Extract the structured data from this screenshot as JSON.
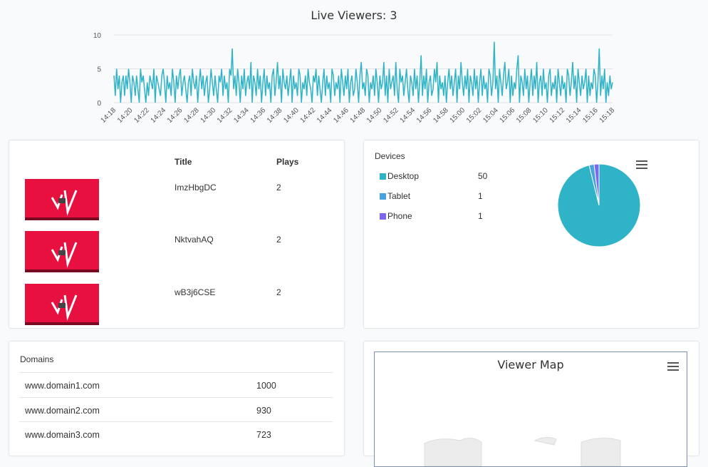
{
  "live_chart": {
    "title": "Live Viewers: 3",
    "y_ticks": [
      "10",
      "5",
      "0"
    ],
    "x_ticks": [
      "14:18",
      "14:20",
      "14:22",
      "14:24",
      "14:26",
      "14:28",
      "14:30",
      "14:32",
      "14:34",
      "14:36",
      "14:38",
      "14:40",
      "14:42",
      "14:44",
      "14:46",
      "14:48",
      "14:50",
      "14:52",
      "14:54",
      "14:56",
      "14:58",
      "15:00",
      "15:02",
      "15:04",
      "15:06",
      "15:08",
      "15:10",
      "15:12",
      "15:14",
      "15:16",
      "15:18"
    ],
    "line_color": "#2fb3c6"
  },
  "chart_data": [
    {
      "type": "line",
      "title": "Live Viewers: 3",
      "xlabel": "",
      "ylabel": "",
      "ylim": [
        0,
        10
      ],
      "x_range": [
        "14:18",
        "15:18"
      ],
      "grid": true,
      "series": [
        {
          "values": [
            4,
            1,
            5,
            2,
            4,
            0,
            3,
            4,
            1,
            4,
            2,
            5,
            3,
            0,
            4,
            3,
            1,
            4,
            2,
            0,
            5,
            3,
            4,
            2,
            0,
            3,
            1,
            4,
            3,
            2,
            5,
            0,
            4,
            3,
            2,
            1,
            4,
            5,
            3,
            0,
            4,
            2,
            3,
            1,
            5,
            3,
            0,
            4,
            2,
            4,
            5,
            1,
            3,
            4,
            2,
            0,
            3,
            4,
            1,
            5,
            3,
            2,
            4,
            0,
            3,
            5,
            2,
            4,
            1,
            3,
            4,
            0,
            2,
            5,
            3,
            1,
            4,
            2,
            0,
            4,
            3,
            5,
            1,
            4,
            2,
            3,
            0,
            5,
            4,
            8,
            2,
            4,
            1,
            5,
            3,
            0,
            4,
            2,
            5,
            1,
            3,
            4,
            2,
            6,
            0,
            4,
            3,
            1,
            5,
            2,
            4,
            0,
            3,
            5,
            1,
            4,
            2,
            3,
            0,
            4,
            5,
            1,
            3,
            6,
            2,
            4,
            0,
            5,
            3,
            2,
            4,
            1,
            3,
            5,
            0,
            4,
            2,
            3,
            1,
            5,
            4,
            0,
            3,
            2,
            4,
            1,
            5,
            3,
            2,
            0,
            4,
            3,
            5,
            1,
            4,
            2,
            0,
            3,
            5,
            1,
            4,
            2,
            3,
            0,
            5,
            4,
            1,
            3,
            2,
            4,
            0,
            5,
            3,
            1,
            4,
            2,
            5,
            0,
            3,
            4,
            1,
            2,
            5,
            3,
            0,
            4,
            6,
            2,
            3,
            1,
            5,
            4,
            0,
            3,
            2,
            4,
            1,
            5,
            3,
            0,
            4,
            2,
            3,
            6,
            1,
            4,
            0,
            5,
            2,
            3,
            4,
            1,
            6,
            2,
            0,
            5,
            3,
            4,
            1,
            3,
            5,
            2,
            0,
            4,
            3,
            1,
            5,
            2,
            4,
            0,
            3,
            7,
            1,
            4,
            2,
            5,
            0,
            3,
            4,
            1,
            2,
            5,
            3,
            6,
            0,
            4,
            2,
            3,
            1,
            4,
            0,
            3,
            5,
            2,
            4,
            1,
            3,
            5,
            0,
            4,
            2,
            6,
            3,
            1,
            4,
            2,
            5,
            0,
            4,
            3,
            1,
            5,
            2,
            4,
            0,
            3,
            5,
            1,
            4,
            2,
            3,
            0,
            5,
            4,
            1,
            3,
            9,
            2,
            4,
            0,
            5,
            3,
            1,
            4,
            6,
            2,
            3,
            5,
            0,
            4,
            1,
            3,
            2,
            5,
            7,
            0,
            4,
            3,
            1,
            5,
            2,
            4,
            0,
            3,
            5,
            1,
            4,
            2,
            6,
            0,
            3,
            4,
            1,
            5,
            2,
            3,
            0,
            4,
            5,
            1,
            3,
            2,
            4,
            0,
            5,
            3,
            1,
            4,
            2,
            3,
            0,
            5,
            4,
            1,
            3,
            6,
            2,
            4,
            0,
            5,
            3,
            1,
            4,
            2,
            3,
            5,
            0,
            4,
            1,
            3,
            2,
            5,
            4,
            0,
            3,
            8,
            1,
            4,
            2,
            5,
            0,
            3,
            1,
            4,
            2,
            3
          ]
        }
      ]
    },
    {
      "type": "pie",
      "title": "",
      "series": [
        {
          "values": [
            50,
            1,
            1
          ]
        }
      ],
      "categories": [
        "Desktop",
        "Tablet",
        "Phone"
      ]
    }
  ],
  "videos": {
    "header_title": "Title",
    "header_plays": "Plays",
    "rows": [
      {
        "title": "ImzHbgDC",
        "plays": "2"
      },
      {
        "title": "NktvahAQ",
        "plays": "2"
      },
      {
        "title": "wB3j6CSE",
        "plays": "2"
      }
    ],
    "thumb_color": "#e8103f"
  },
  "devices": {
    "title": "Devices",
    "items": [
      {
        "label": "Desktop",
        "value": "50",
        "color": "#2fb3c6"
      },
      {
        "label": "Tablet",
        "value": "1",
        "color": "#4aa3df"
      },
      {
        "label": "Phone",
        "value": "1",
        "color": "#7b68ee"
      }
    ],
    "menu_icon": "hamburger-menu-icon"
  },
  "domains": {
    "title": "Domains",
    "rows": [
      {
        "name": "www.domain1.com",
        "count": "1000"
      },
      {
        "name": "www.domain2.com",
        "count": "930"
      },
      {
        "name": "www.domain3.com",
        "count": "723"
      }
    ]
  },
  "map": {
    "title": "Viewer Map",
    "menu_icon": "hamburger-menu-icon"
  }
}
